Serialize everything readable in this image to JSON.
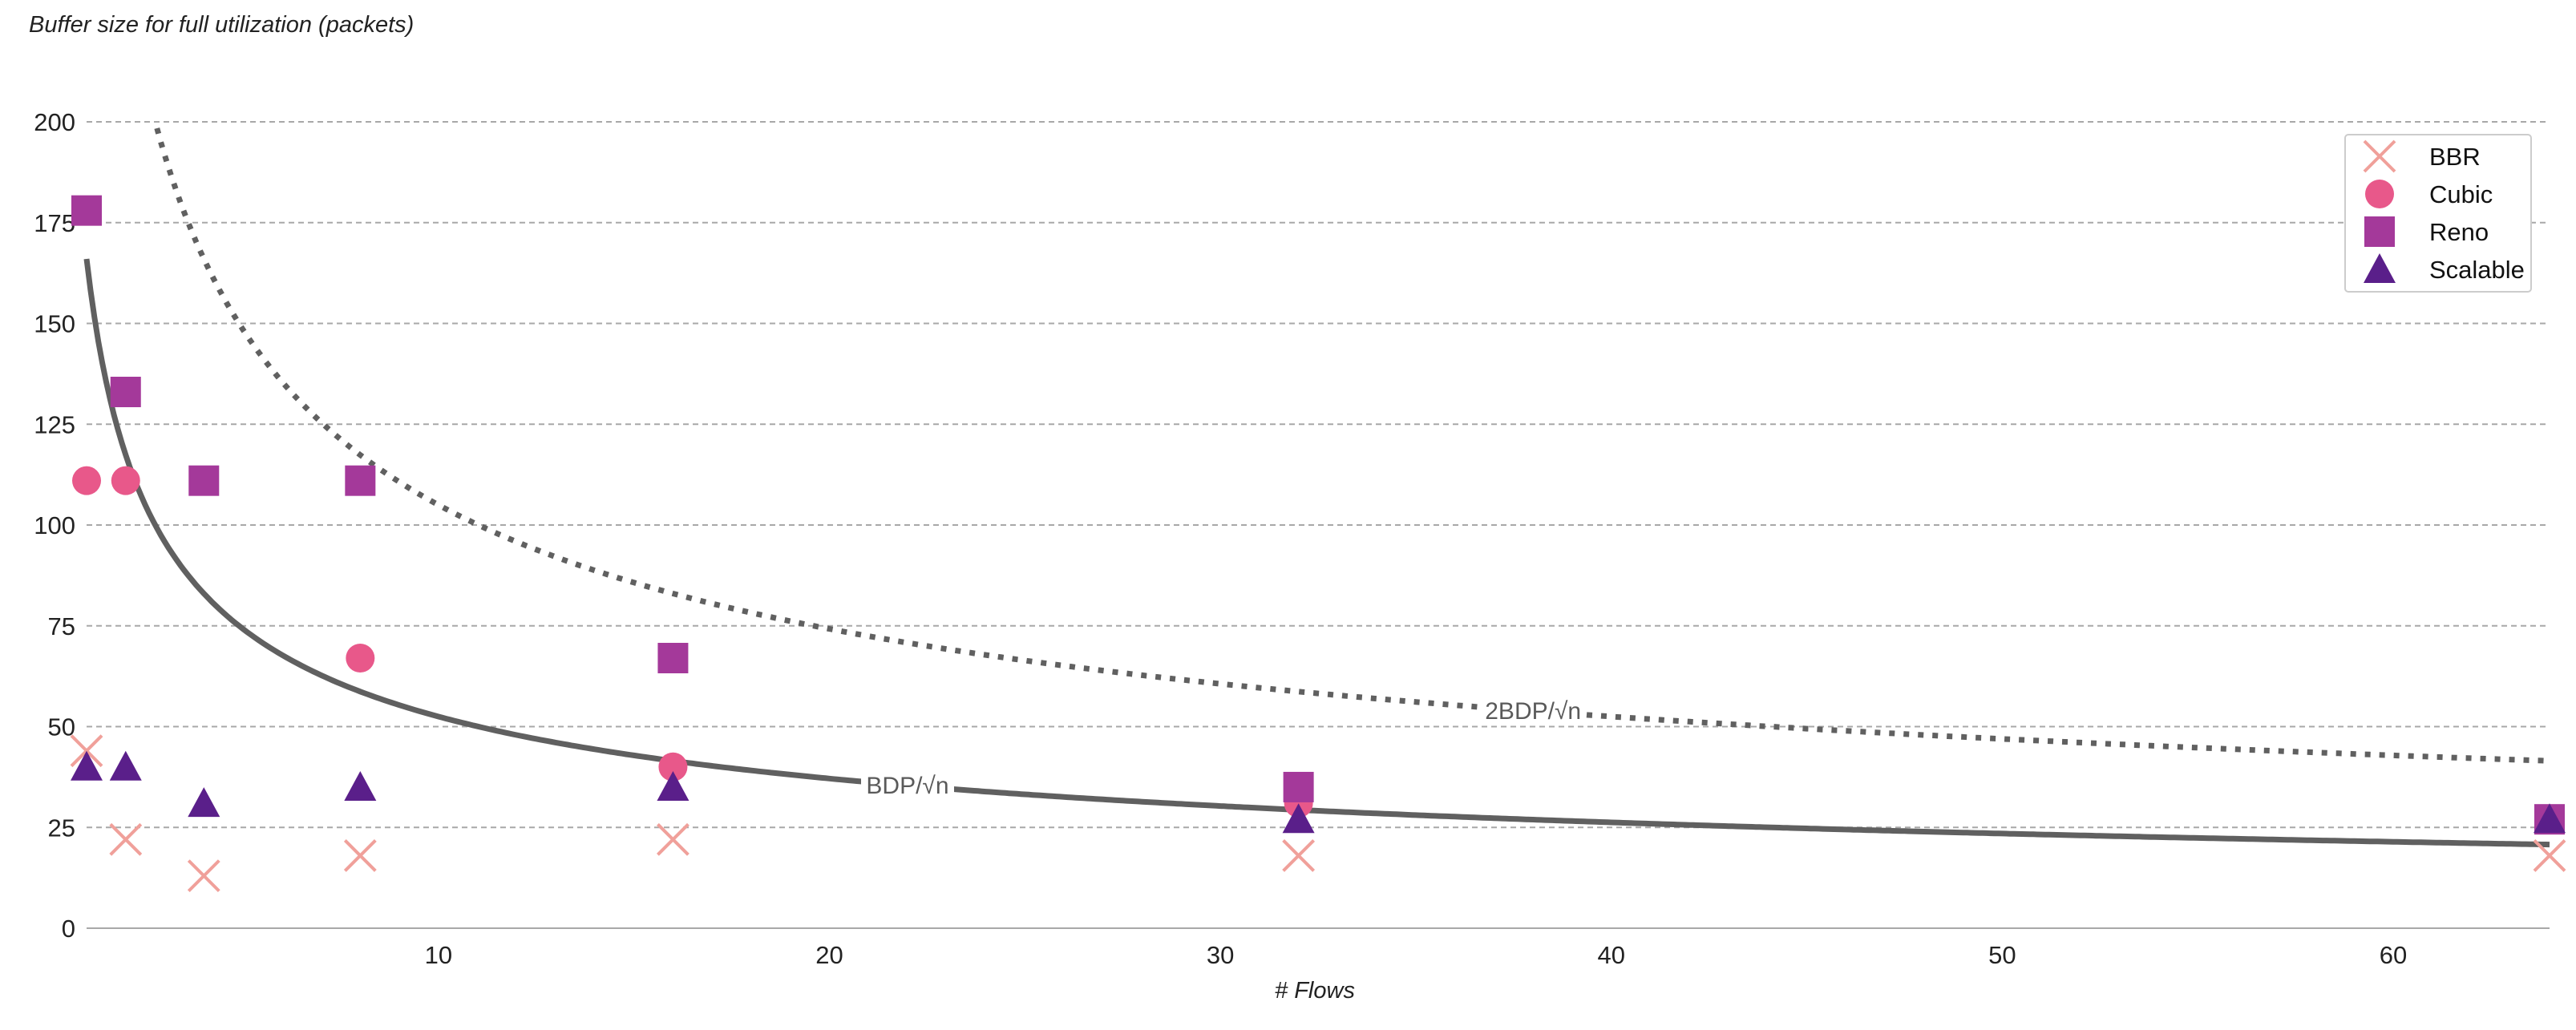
{
  "chart_data": {
    "type": "scatter",
    "title": "",
    "ylabel": "Buffer size for full utilization (packets)",
    "xlabel": "# Flows",
    "xlim": [
      1,
      64
    ],
    "ylim": [
      0,
      200
    ],
    "xticks": [
      10,
      20,
      30,
      40,
      50,
      60
    ],
    "yticks": [
      0,
      25,
      50,
      75,
      100,
      125,
      150,
      175,
      200
    ],
    "grid": "horizontal dashed",
    "legend": "top-right",
    "series": [
      {
        "name": "BBR",
        "marker": "x",
        "color": "#f0a09a",
        "points": [
          [
            1,
            44
          ],
          [
            2,
            22
          ],
          [
            4,
            13
          ],
          [
            8,
            18
          ],
          [
            16,
            22
          ],
          [
            32,
            18
          ],
          [
            64,
            18
          ]
        ]
      },
      {
        "name": "Cubic",
        "marker": "circle",
        "color": "#e8588a",
        "points": [
          [
            1,
            111
          ],
          [
            2,
            111
          ],
          [
            8,
            67
          ],
          [
            16,
            40
          ],
          [
            32,
            31
          ],
          [
            64,
            27
          ]
        ]
      },
      {
        "name": "Reno",
        "marker": "square",
        "color": "#a4399a",
        "points": [
          [
            1,
            178
          ],
          [
            2,
            133
          ],
          [
            4,
            111
          ],
          [
            8,
            111
          ],
          [
            16,
            67
          ],
          [
            32,
            35
          ],
          [
            64,
            27
          ]
        ]
      },
      {
        "name": "Scalable",
        "marker": "triangle",
        "color": "#5a1f8a",
        "points": [
          [
            1,
            40
          ],
          [
            2,
            40
          ],
          [
            4,
            31
          ],
          [
            8,
            35
          ],
          [
            16,
            35
          ],
          [
            32,
            27
          ],
          [
            64,
            27
          ]
        ]
      }
    ],
    "curves": [
      {
        "label": "BDP/√n",
        "style": "solid",
        "color": "#606060",
        "k": 166,
        "label_x": 22
      },
      {
        "label": "2BDP/√n",
        "style": "dotted",
        "color": "#606060",
        "k": 332,
        "label_x": 38
      }
    ]
  }
}
